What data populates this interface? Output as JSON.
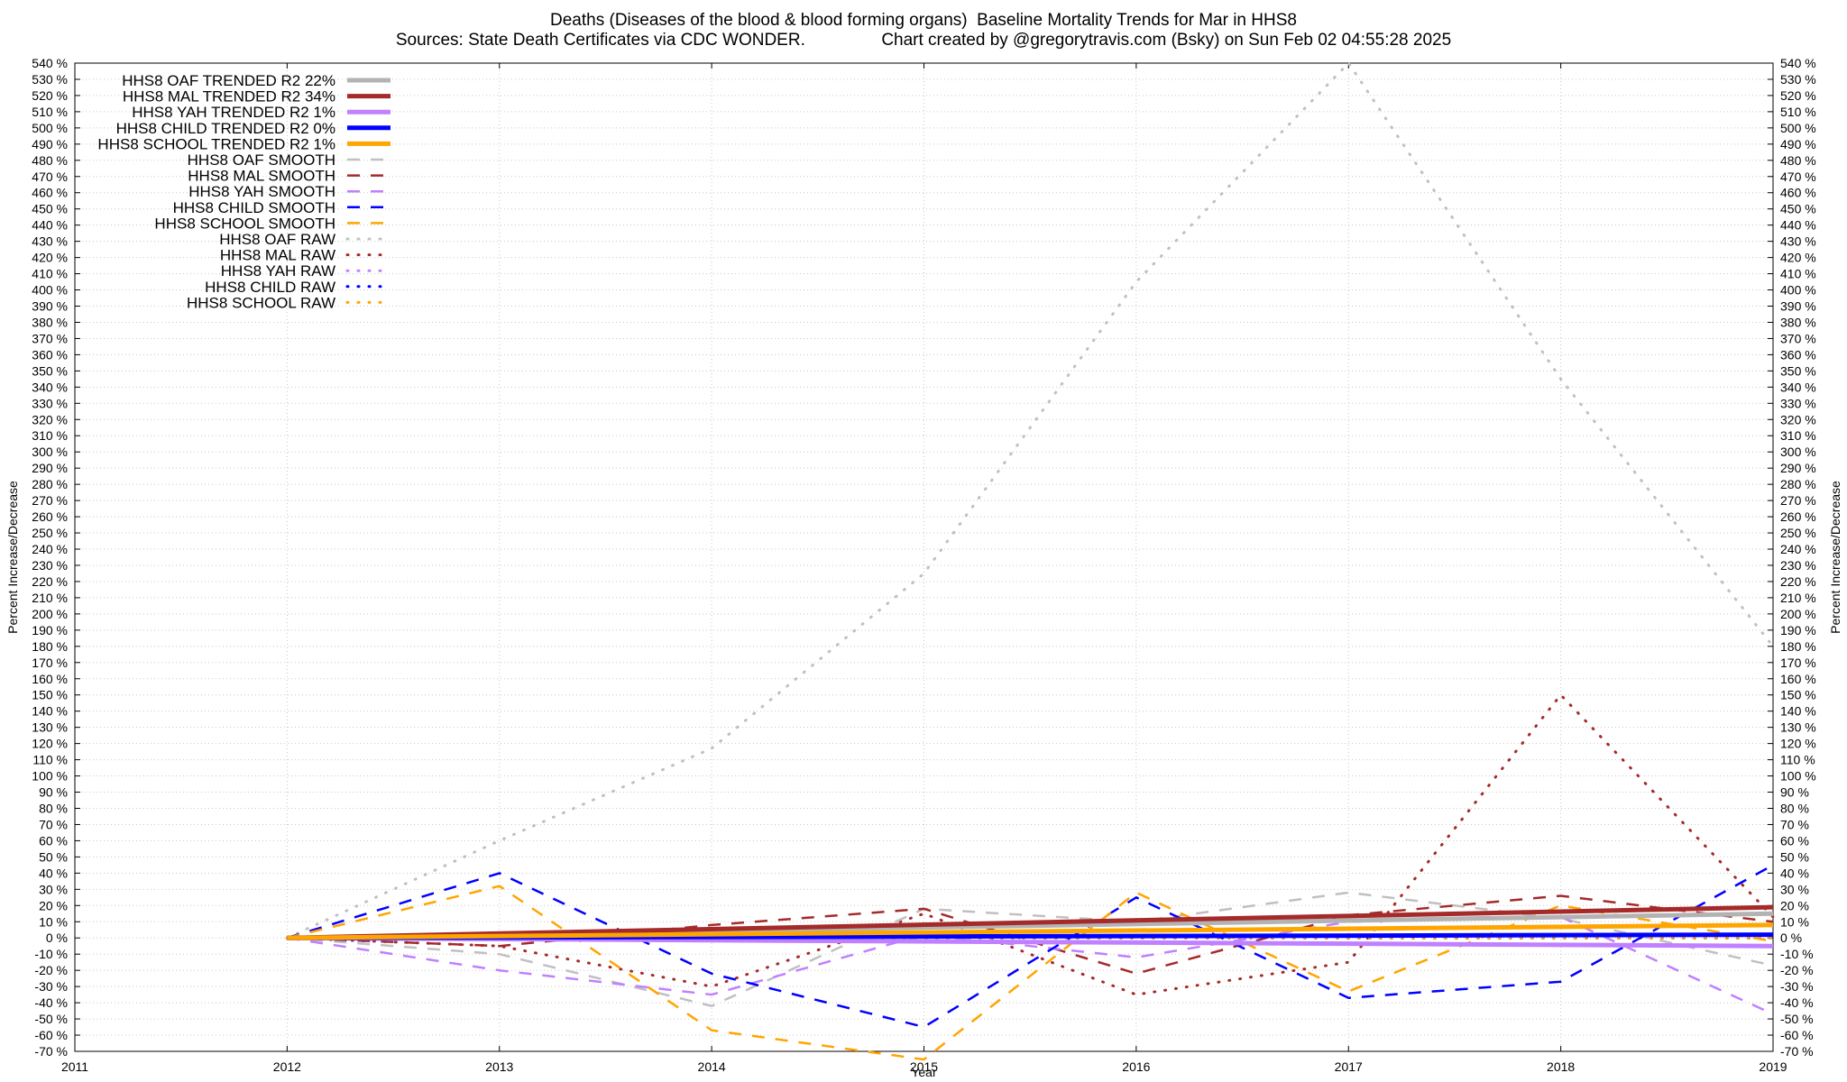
{
  "header": {
    "title_line1": "Deaths (Diseases of the blood & blood forming organs)  Baseline Mortality Trends for Mar in HHS8",
    "title_line2": "Sources: State Death Certificates via CDC WONDER.                Chart created by @gregorytravis.com (Bsky) on Sun Feb 02 04:55:28 2025"
  },
  "chart_data": {
    "type": "line",
    "xlabel": "Year",
    "ylabel": "Percent Increase/Decrease",
    "xlim": [
      2011,
      2019
    ],
    "ylim": [
      -70,
      540
    ],
    "x_ticks": [
      2011,
      2012,
      2013,
      2014,
      2015,
      2016,
      2017,
      2018,
      2019
    ],
    "y_tick_step": 10,
    "y_tick_suffix": " %",
    "grid": true,
    "legend_position": "top-left",
    "series": [
      {
        "name": "HHS8 OAF TRENDED R2",
        "r2": "22%",
        "style": "trend",
        "color": "#b3b3b3",
        "x": [
          2012,
          2019
        ],
        "values": [
          0,
          15
        ]
      },
      {
        "name": "HHS8 MAL TRENDED R2",
        "r2": "34%",
        "style": "trend",
        "color": "#a52a2a",
        "x": [
          2012,
          2019
        ],
        "values": [
          0,
          19
        ]
      },
      {
        "name": "HHS8 YAH TRENDED R2",
        "r2": "1%",
        "style": "trend",
        "color": "#c080ff",
        "x": [
          2012,
          2019
        ],
        "values": [
          0,
          -5
        ]
      },
      {
        "name": "HHS8 CHILD TRENDED R2",
        "r2": "0%",
        "style": "trend",
        "color": "#0000ff",
        "x": [
          2012,
          2019
        ],
        "values": [
          0,
          2
        ]
      },
      {
        "name": "HHS8 SCHOOL TRENDED R2",
        "r2": "1%",
        "style": "trend",
        "color": "#ffa500",
        "x": [
          2012,
          2019
        ],
        "values": [
          0,
          8
        ]
      },
      {
        "name": "HHS8 OAF SMOOTH",
        "r2": "",
        "style": "smooth",
        "color": "#c0c0c0",
        "x": [
          2012,
          2013,
          2014,
          2015,
          2016,
          2017,
          2018,
          2019
        ],
        "values": [
          0,
          -10,
          -42,
          18,
          10,
          28,
          12,
          -17
        ]
      },
      {
        "name": "HHS8 MAL SMOOTH",
        "r2": "",
        "style": "smooth",
        "color": "#a52a2a",
        "x": [
          2012,
          2013,
          2014,
          2015,
          2016,
          2017,
          2018,
          2019
        ],
        "values": [
          0,
          -5,
          8,
          18,
          -22,
          14,
          26,
          10
        ]
      },
      {
        "name": "HHS8 YAH SMOOTH",
        "r2": "",
        "style": "smooth",
        "color": "#c080ff",
        "x": [
          2012,
          2013,
          2014,
          2015,
          2016,
          2017,
          2018,
          2019
        ],
        "values": [
          0,
          -20,
          -35,
          2,
          -12,
          10,
          13,
          -47
        ]
      },
      {
        "name": "HHS8 CHILD SMOOTH",
        "r2": "",
        "style": "smooth",
        "color": "#0000ff",
        "x": [
          2012,
          2013,
          2014,
          2015,
          2016,
          2017,
          2018,
          2019
        ],
        "values": [
          0,
          40,
          -22,
          -55,
          25,
          -37,
          -27,
          45
        ]
      },
      {
        "name": "HHS8 SCHOOL SMOOTH",
        "r2": "",
        "style": "smooth",
        "color": "#ffa500",
        "x": [
          2012,
          2013,
          2014,
          2015,
          2016,
          2017,
          2018,
          2019
        ],
        "values": [
          0,
          32,
          -57,
          -75,
          28,
          -33,
          20,
          -2
        ]
      },
      {
        "name": "HHS8 OAF RAW",
        "r2": "",
        "style": "raw",
        "color": "#c0c0c0",
        "x": [
          2012,
          2013,
          2014,
          2015,
          2016,
          2017,
          2018,
          2019
        ],
        "values": [
          0,
          60,
          117,
          225,
          405,
          540,
          345,
          180
        ]
      },
      {
        "name": "HHS8 MAL RAW",
        "r2": "",
        "style": "raw",
        "color": "#a52a2a",
        "x": [
          2012,
          2013,
          2014,
          2015,
          2016,
          2017,
          2018,
          2019
        ],
        "values": [
          0,
          -5,
          -30,
          15,
          -35,
          -15,
          150,
          13
        ]
      },
      {
        "name": "HHS8 YAH RAW",
        "r2": "",
        "style": "raw",
        "color": "#c080ff",
        "x": [
          2012,
          2013,
          2014,
          2015,
          2016,
          2017,
          2018,
          2019
        ],
        "values": [
          0,
          0,
          0,
          0,
          0,
          0,
          0,
          0
        ]
      },
      {
        "name": "HHS8 CHILD RAW",
        "r2": "",
        "style": "raw",
        "color": "#0000ff",
        "x": [
          2012,
          2013,
          2014,
          2015,
          2016,
          2017,
          2018,
          2019
        ],
        "values": [
          0,
          0,
          0,
          0,
          0,
          0,
          0,
          0
        ]
      },
      {
        "name": "HHS8 SCHOOL RAW",
        "r2": "",
        "style": "raw",
        "color": "#ffa500",
        "x": [
          2012,
          2013,
          2014,
          2015,
          2016,
          2017,
          2018,
          2019
        ],
        "values": [
          0,
          0,
          0,
          0,
          0,
          0,
          0,
          0
        ]
      }
    ]
  }
}
